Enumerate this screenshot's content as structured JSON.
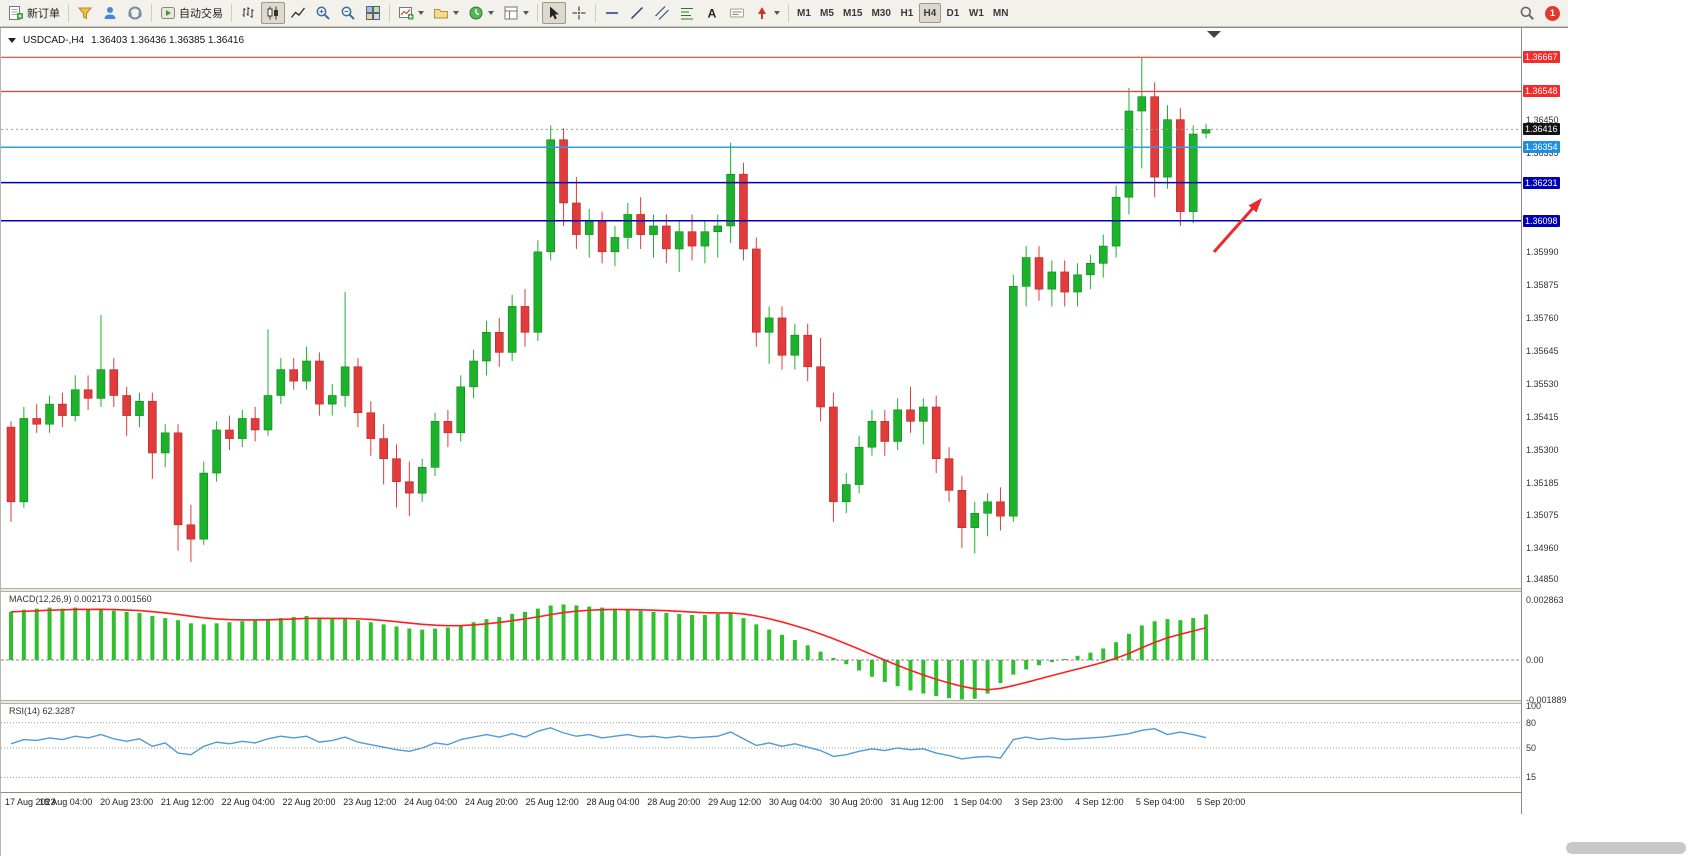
{
  "toolbar": {
    "new_order_label": "新订单",
    "auto_trading_label": "自动交易",
    "timeframes": [
      "M1",
      "M5",
      "M15",
      "M30",
      "H1",
      "H4",
      "D1",
      "W1",
      "MN"
    ],
    "active_timeframe": "H4",
    "notification_count": "1"
  },
  "chart": {
    "symbol_title": "USDCAD-,H4",
    "ohlc_text": "1.36403 1.36436 1.36385 1.36416"
  },
  "indicators": {
    "macd_label": "MACD(12,26,9)",
    "macd_values": "0.002173 0.001560",
    "rsi_label": "RSI(14)",
    "rsi_value": "62.3287"
  },
  "chart_data": [
    {
      "type": "candlestick",
      "title": "USDCAD H4",
      "price_axis": {
        "min": 1.3482,
        "max": 1.36762,
        "ticks": [
          1.3645,
          1.36335,
          1.3599,
          1.35875,
          1.3576,
          1.35645,
          1.3553,
          1.35415,
          1.353,
          1.35185,
          1.35075,
          1.3496,
          1.3485
        ]
      },
      "current_price": 1.36416,
      "current_badge_color": "#141414",
      "bull_color": "#1cb22b",
      "bear_color": "#e13b3b",
      "h_lines": [
        {
          "price": 1.36667,
          "color": "#ff3434",
          "badge": "#f32b2b",
          "role": "resistance"
        },
        {
          "price": 1.36548,
          "color": "#ff3434",
          "badge": "#f32b2b",
          "role": "resistance"
        },
        {
          "price": 1.36354,
          "color": "#2e9fe6",
          "badge": "#1e8fdc",
          "role": "support"
        },
        {
          "price": 1.36231,
          "color": "#0000bb",
          "badge": "#0000bb",
          "role": "support"
        },
        {
          "price": 1.36098,
          "color": "#0000bb",
          "badge": "#0000bb",
          "role": "support"
        }
      ],
      "annotation_arrow": {
        "color": "#e82c2c",
        "direction": "up-right"
      },
      "x_labels": [
        "17 Aug 2023",
        "18 Aug 04:00",
        "20 Aug 23:00",
        "21 Aug 12:00",
        "22 Aug 04:00",
        "22 Aug 20:00",
        "23 Aug 12:00",
        "24 Aug 04:00",
        "24 Aug 20:00",
        "25 Aug 12:00",
        "28 Aug 04:00",
        "28 Aug 20:00",
        "29 Aug 12:00",
        "30 Aug 04:00",
        "30 Aug 20:00",
        "31 Aug 12:00",
        "1 Sep 04:00",
        "3 Sep 23:00",
        "4 Sep 12:00",
        "5 Sep 04:00",
        "5 Sep 20:00"
      ],
      "candles_ohlc": [
        [
          1.3538,
          1.354,
          1.3505,
          1.3512
        ],
        [
          1.3512,
          1.3545,
          1.351,
          1.3541
        ],
        [
          1.3541,
          1.3546,
          1.3536,
          1.3539
        ],
        [
          1.3539,
          1.3549,
          1.3536,
          1.3546
        ],
        [
          1.3546,
          1.355,
          1.3538,
          1.3542
        ],
        [
          1.3542,
          1.3556,
          1.354,
          1.3551
        ],
        [
          1.3551,
          1.3556,
          1.3544,
          1.3548
        ],
        [
          1.3548,
          1.3577,
          1.3545,
          1.3558
        ],
        [
          1.3558,
          1.3562,
          1.3545,
          1.3549
        ],
        [
          1.3549,
          1.3552,
          1.3535,
          1.3542
        ],
        [
          1.3542,
          1.355,
          1.3538,
          1.3547
        ],
        [
          1.3547,
          1.355,
          1.352,
          1.3529
        ],
        [
          1.3529,
          1.3539,
          1.3524,
          1.3536
        ],
        [
          1.3536,
          1.3539,
          1.3495,
          1.3504
        ],
        [
          1.3504,
          1.3511,
          1.3491,
          1.3499
        ],
        [
          1.3499,
          1.3526,
          1.3497,
          1.3522
        ],
        [
          1.3522,
          1.354,
          1.3519,
          1.3537
        ],
        [
          1.3537,
          1.3542,
          1.353,
          1.3534
        ],
        [
          1.3534,
          1.3544,
          1.3531,
          1.3541
        ],
        [
          1.3541,
          1.3545,
          1.3533,
          1.3537
        ],
        [
          1.3537,
          1.3572,
          1.3535,
          1.3549
        ],
        [
          1.3549,
          1.3562,
          1.3546,
          1.3558
        ],
        [
          1.3558,
          1.3562,
          1.3551,
          1.3554
        ],
        [
          1.3554,
          1.3566,
          1.3551,
          1.3561
        ],
        [
          1.3561,
          1.3564,
          1.3542,
          1.3546
        ],
        [
          1.3546,
          1.3553,
          1.3542,
          1.3549
        ],
        [
          1.3549,
          1.3585,
          1.3545,
          1.3559
        ],
        [
          1.3559,
          1.3562,
          1.3538,
          1.3543
        ],
        [
          1.3543,
          1.3547,
          1.3528,
          1.3534
        ],
        [
          1.3534,
          1.3539,
          1.3518,
          1.3527
        ],
        [
          1.3527,
          1.3532,
          1.351,
          1.3519
        ],
        [
          1.3519,
          1.3526,
          1.3507,
          1.3515
        ],
        [
          1.3515,
          1.3527,
          1.3512,
          1.3524
        ],
        [
          1.3524,
          1.3543,
          1.3521,
          1.354
        ],
        [
          1.354,
          1.3544,
          1.3531,
          1.3536
        ],
        [
          1.3536,
          1.3556,
          1.3533,
          1.3552
        ],
        [
          1.3552,
          1.3565,
          1.3548,
          1.3561
        ],
        [
          1.3561,
          1.3575,
          1.3556,
          1.3571
        ],
        [
          1.3571,
          1.3576,
          1.3559,
          1.3564
        ],
        [
          1.3564,
          1.3584,
          1.3561,
          1.358
        ],
        [
          1.358,
          1.3586,
          1.3566,
          1.3571
        ],
        [
          1.3571,
          1.3603,
          1.3568,
          1.3599
        ],
        [
          1.3599,
          1.3643,
          1.3596,
          1.3638
        ],
        [
          1.3638,
          1.3642,
          1.3608,
          1.3616
        ],
        [
          1.3616,
          1.3625,
          1.36,
          1.3605
        ],
        [
          1.3605,
          1.3614,
          1.3597,
          1.361
        ],
        [
          1.361,
          1.3613,
          1.3595,
          1.3599
        ],
        [
          1.3599,
          1.3608,
          1.3594,
          1.3604
        ],
        [
          1.3604,
          1.3616,
          1.36,
          1.3612
        ],
        [
          1.3612,
          1.3618,
          1.36,
          1.3605
        ],
        [
          1.3605,
          1.3612,
          1.3597,
          1.3608
        ],
        [
          1.3608,
          1.3612,
          1.3595,
          1.36
        ],
        [
          1.36,
          1.361,
          1.3592,
          1.3606
        ],
        [
          1.3606,
          1.3612,
          1.3596,
          1.3601
        ],
        [
          1.3601,
          1.361,
          1.3595,
          1.3606
        ],
        [
          1.3606,
          1.3612,
          1.3597,
          1.3608
        ],
        [
          1.3608,
          1.3637,
          1.3602,
          1.3626
        ],
        [
          1.3626,
          1.363,
          1.3596,
          1.36
        ],
        [
          1.36,
          1.3604,
          1.3566,
          1.3571
        ],
        [
          1.3571,
          1.358,
          1.356,
          1.3576
        ],
        [
          1.3576,
          1.358,
          1.3558,
          1.3563
        ],
        [
          1.3563,
          1.3574,
          1.3558,
          1.357
        ],
        [
          1.357,
          1.3574,
          1.3554,
          1.3559
        ],
        [
          1.3559,
          1.3569,
          1.354,
          1.3545
        ],
        [
          1.3545,
          1.355,
          1.3505,
          1.3512
        ],
        [
          1.3512,
          1.3522,
          1.3508,
          1.3518
        ],
        [
          1.3518,
          1.3535,
          1.3515,
          1.3531
        ],
        [
          1.3531,
          1.3544,
          1.3528,
          1.354
        ],
        [
          1.354,
          1.3544,
          1.3528,
          1.3533
        ],
        [
          1.3533,
          1.3548,
          1.353,
          1.3544
        ],
        [
          1.3544,
          1.3552,
          1.3536,
          1.354
        ],
        [
          1.354,
          1.3548,
          1.3532,
          1.3545
        ],
        [
          1.3545,
          1.3549,
          1.3522,
          1.3527
        ],
        [
          1.3527,
          1.3531,
          1.3512,
          1.3516
        ],
        [
          1.3516,
          1.3521,
          1.3496,
          1.3503
        ],
        [
          1.3503,
          1.3512,
          1.3494,
          1.3508
        ],
        [
          1.3508,
          1.3515,
          1.35,
          1.3512
        ],
        [
          1.3512,
          1.3517,
          1.3502,
          1.3507
        ],
        [
          1.3507,
          1.3591,
          1.3505,
          1.3587
        ],
        [
          1.3587,
          1.3601,
          1.358,
          1.3597
        ],
        [
          1.3597,
          1.3601,
          1.3582,
          1.3586
        ],
        [
          1.3586,
          1.3596,
          1.358,
          1.3592
        ],
        [
          1.3592,
          1.3596,
          1.358,
          1.3585
        ],
        [
          1.3585,
          1.3595,
          1.358,
          1.3591
        ],
        [
          1.3591,
          1.3598,
          1.3586,
          1.3595
        ],
        [
          1.3595,
          1.3605,
          1.359,
          1.3601
        ],
        [
          1.3601,
          1.3622,
          1.3597,
          1.3618
        ],
        [
          1.3618,
          1.3656,
          1.3612,
          1.3648
        ],
        [
          1.3648,
          1.36667,
          1.3628,
          1.3653
        ],
        [
          1.3653,
          1.3658,
          1.3618,
          1.3625
        ],
        [
          1.3625,
          1.365,
          1.3621,
          1.3645
        ],
        [
          1.3645,
          1.3649,
          1.3608,
          1.3613
        ],
        [
          1.3613,
          1.3643,
          1.3609,
          1.364
        ],
        [
          1.36403,
          1.36436,
          1.36385,
          1.36416
        ]
      ]
    },
    {
      "type": "bar",
      "name": "MACD(12,26,9)",
      "main_value": 0.002173,
      "signal_value": 0.00156,
      "histogram_color": "#2fbf2f",
      "signal_color": "#ff1f1f",
      "signal_period": 9,
      "y_ticks": [
        "0.002863",
        "0.00",
        "-0.001889"
      ],
      "histogram_milli": [
        2.3,
        2.4,
        2.45,
        2.5,
        2.45,
        2.5,
        2.4,
        2.45,
        2.35,
        2.3,
        2.25,
        2.1,
        2.0,
        1.9,
        1.75,
        1.7,
        1.75,
        1.8,
        1.85,
        1.9,
        1.95,
        2.0,
        2.05,
        2.1,
        2.0,
        1.95,
        2.0,
        1.9,
        1.8,
        1.7,
        1.6,
        1.5,
        1.45,
        1.5,
        1.55,
        1.65,
        1.8,
        1.95,
        2.05,
        2.2,
        2.3,
        2.45,
        2.6,
        2.65,
        2.6,
        2.55,
        2.5,
        2.45,
        2.4,
        2.35,
        2.3,
        2.25,
        2.2,
        2.15,
        2.15,
        2.2,
        2.25,
        2.0,
        1.7,
        1.45,
        1.2,
        0.95,
        0.7,
        0.4,
        0.1,
        -0.2,
        -0.5,
        -0.8,
        -1.05,
        -1.25,
        -1.45,
        -1.6,
        -1.72,
        -1.82,
        -1.89,
        -1.85,
        -1.6,
        -1.1,
        -0.7,
        -0.45,
        -0.25,
        -0.1,
        0.05,
        0.2,
        0.35,
        0.55,
        0.85,
        1.25,
        1.65,
        1.85,
        1.95,
        1.9,
        2.0,
        2.173
      ]
    },
    {
      "type": "line",
      "name": "RSI(14)",
      "current": 62.3287,
      "range": [
        0,
        100
      ],
      "levels": [
        80,
        50,
        15
      ],
      "y_ticks": [
        100,
        80,
        50,
        15
      ],
      "line_color": "#4f9bd8",
      "values": [
        55,
        60,
        59,
        62,
        60,
        64,
        62,
        66,
        61,
        58,
        61,
        52,
        56,
        44,
        42,
        52,
        57,
        55,
        58,
        56,
        61,
        64,
        62,
        64,
        57,
        59,
        63,
        57,
        54,
        51,
        48,
        46,
        50,
        56,
        54,
        60,
        63,
        66,
        63,
        67,
        63,
        70,
        74,
        68,
        64,
        66,
        62,
        64,
        66,
        63,
        64,
        62,
        64,
        62,
        63,
        64,
        69,
        61,
        53,
        56,
        52,
        55,
        51,
        47,
        40,
        42,
        46,
        49,
        47,
        50,
        48,
        49,
        44,
        41,
        37,
        39,
        40,
        38,
        60,
        63,
        60,
        62,
        60,
        61,
        62,
        63,
        65,
        67,
        71,
        73,
        66,
        69,
        66,
        62.3
      ]
    }
  ]
}
